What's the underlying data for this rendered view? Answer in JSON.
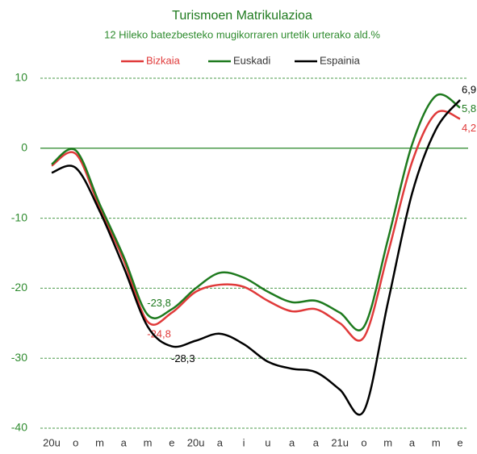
{
  "chart_data": {
    "type": "line",
    "title": "Turismoen Matrikulazioa",
    "subtitle": "12 Hileko  batezbesteko mugikorraren urtetik urterako ald.%",
    "categories": [
      "20u",
      "o",
      "m",
      "a",
      "m",
      "e",
      "20u",
      "a",
      "i",
      "u",
      "a",
      "a",
      "21u",
      "o",
      "m",
      "a",
      "m",
      "e"
    ],
    "series": [
      {
        "name": "Bizkaia",
        "color": "#e03a3a",
        "values": [
          -2.5,
          -0.8,
          -8.5,
          -16,
          -24.8,
          -23.5,
          -20.5,
          -19.5,
          -19.8,
          -21.8,
          -23.3,
          -23,
          -25,
          -27,
          -15,
          -2,
          5,
          4.2
        ],
        "value_labels": [
          null,
          null,
          null,
          null,
          "-24,8",
          null,
          null,
          null,
          null,
          null,
          null,
          null,
          null,
          null,
          null,
          null,
          null,
          "4,2"
        ]
      },
      {
        "name": "Euskadi",
        "color": "#1e7a1e",
        "values": [
          -2.3,
          -0.3,
          -8,
          -15.5,
          -23.8,
          -23,
          -20,
          -17.8,
          -18.5,
          -20.5,
          -22,
          -21.8,
          -23.5,
          -25.5,
          -13,
          0.5,
          7.5,
          5.8
        ],
        "value_labels": [
          null,
          null,
          null,
          null,
          "-23,8",
          null,
          null,
          null,
          null,
          null,
          null,
          null,
          null,
          null,
          null,
          null,
          null,
          "5,8"
        ]
      },
      {
        "name": "Espainia",
        "color": "#000000",
        "values": [
          -3.5,
          -2.8,
          -9,
          -17,
          -25.5,
          -28.3,
          -27.5,
          -26.5,
          -28,
          -30.5,
          -31.5,
          -32,
          -34.5,
          -37.5,
          -22,
          -6.5,
          2.7,
          6.9
        ],
        "value_labels": [
          null,
          null,
          null,
          null,
          null,
          "-28,3",
          null,
          null,
          null,
          null,
          null,
          null,
          null,
          null,
          null,
          null,
          null,
          "6,9"
        ]
      }
    ],
    "ylim": [
      -40,
      10
    ],
    "yticks": [
      -40,
      -30,
      -20,
      -10,
      0,
      10
    ],
    "grid": true
  }
}
